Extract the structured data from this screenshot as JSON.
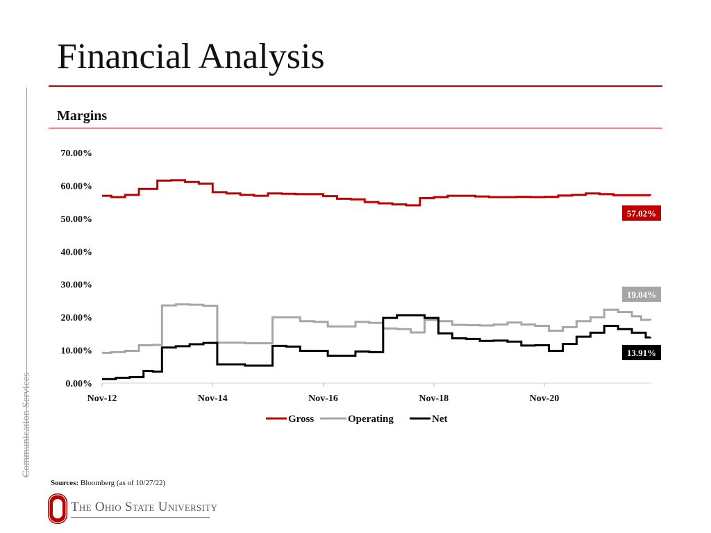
{
  "slide": {
    "title": "Financial Analysis",
    "subtitle": "Margins",
    "sidebar_label": "Communication Services",
    "sources_label": "Sources:",
    "sources_text": "Bloomberg (as of 10/27/22)",
    "logo_text": "The Ohio State University"
  },
  "colors": {
    "accent": "#c00000",
    "gross": "#c00000",
    "operating": "#a6a6a6",
    "net": "#000000"
  },
  "chart_data": {
    "type": "line",
    "title": "Margins",
    "xlabel": "",
    "ylabel": "",
    "x_tick_labels": [
      "Nov-12",
      "Nov-14",
      "Nov-16",
      "Nov-18",
      "Nov-20"
    ],
    "y_tick_labels": [
      "0.00%",
      "10.00%",
      "20.00%",
      "30.00%",
      "40.00%",
      "50.00%",
      "60.00%",
      "70.00%"
    ],
    "ylim": [
      0,
      70
    ],
    "x_range": [
      "Nov-12",
      "Oct-22"
    ],
    "grid": false,
    "legend_position": "bottom",
    "series": [
      {
        "name": "Gross",
        "color": "#c00000",
        "end_label": "57.02%",
        "points": [
          [
            "Nov-12",
            56.9
          ],
          [
            "Jan-13",
            56.5
          ],
          [
            "Apr-13",
            57.2
          ],
          [
            "Jul-13",
            59.0
          ],
          [
            "Nov-13",
            61.5
          ],
          [
            "Feb-14",
            61.6
          ],
          [
            "May-14",
            61.1
          ],
          [
            "Aug-14",
            60.6
          ],
          [
            "Nov-14",
            58.0
          ],
          [
            "Feb-15",
            57.6
          ],
          [
            "May-15",
            57.2
          ],
          [
            "Aug-15",
            56.9
          ],
          [
            "Nov-15",
            57.6
          ],
          [
            "Feb-16",
            57.5
          ],
          [
            "May-16",
            57.4
          ],
          [
            "Aug-16",
            57.4
          ],
          [
            "Nov-16",
            56.8
          ],
          [
            "Feb-17",
            56.0
          ],
          [
            "May-17",
            55.8
          ],
          [
            "Aug-17",
            55.0
          ],
          [
            "Nov-17",
            54.6
          ],
          [
            "Feb-18",
            54.3
          ],
          [
            "May-18",
            54.0
          ],
          [
            "Aug-18",
            56.2
          ],
          [
            "Nov-18",
            56.5
          ],
          [
            "Feb-19",
            56.9
          ],
          [
            "May-19",
            56.9
          ],
          [
            "Aug-19",
            56.7
          ],
          [
            "Nov-19",
            56.5
          ],
          [
            "Feb-20",
            56.5
          ],
          [
            "May-20",
            56.6
          ],
          [
            "Aug-20",
            56.5
          ],
          [
            "Nov-20",
            56.6
          ],
          [
            "Feb-21",
            57.0
          ],
          [
            "May-21",
            57.2
          ],
          [
            "Aug-21",
            57.6
          ],
          [
            "Nov-21",
            57.4
          ],
          [
            "Feb-22",
            57.1
          ],
          [
            "May-22",
            57.1
          ],
          [
            "Oct-22",
            57.02
          ]
        ]
      },
      {
        "name": "Operating",
        "color": "#a6a6a6",
        "end_label": "19.04%",
        "points": [
          [
            "Nov-12",
            9.2
          ],
          [
            "Jan-13",
            9.4
          ],
          [
            "Apr-13",
            9.8
          ],
          [
            "Jul-13",
            11.5
          ],
          [
            "Oct-13",
            11.6
          ],
          [
            "Dec-13",
            23.6
          ],
          [
            "Mar-14",
            23.9
          ],
          [
            "Jun-14",
            23.8
          ],
          [
            "Sep-14",
            23.5
          ],
          [
            "Dec-14",
            12.3
          ],
          [
            "Mar-15",
            12.3
          ],
          [
            "Jun-15",
            12.1
          ],
          [
            "Sep-15",
            12.1
          ],
          [
            "Dec-15",
            20.0
          ],
          [
            "Mar-16",
            20.0
          ],
          [
            "Jun-16",
            18.8
          ],
          [
            "Sep-16",
            18.6
          ],
          [
            "Dec-16",
            17.2
          ],
          [
            "Mar-17",
            17.2
          ],
          [
            "Jun-17",
            18.6
          ],
          [
            "Sep-17",
            18.3
          ],
          [
            "Dec-17",
            16.6
          ],
          [
            "Mar-18",
            16.4
          ],
          [
            "Jun-18",
            15.4
          ],
          [
            "Sep-18",
            19.2
          ],
          [
            "Dec-18",
            18.8
          ],
          [
            "Mar-19",
            17.7
          ],
          [
            "Jun-19",
            17.6
          ],
          [
            "Sep-19",
            17.5
          ],
          [
            "Dec-19",
            17.8
          ],
          [
            "Mar-20",
            18.4
          ],
          [
            "Jun-20",
            17.8
          ],
          [
            "Sep-20",
            17.4
          ],
          [
            "Dec-20",
            15.9
          ],
          [
            "Mar-21",
            17.0
          ],
          [
            "Jun-21",
            18.8
          ],
          [
            "Sep-21",
            20.0
          ],
          [
            "Dec-21",
            22.3
          ],
          [
            "Mar-22",
            21.6
          ],
          [
            "Jun-22",
            20.3
          ],
          [
            "Aug-22",
            19.2
          ],
          [
            "Oct-22",
            19.04
          ]
        ]
      },
      {
        "name": "Net",
        "color": "#000000",
        "end_label": "13.91%",
        "points": [
          [
            "Nov-12",
            1.2
          ],
          [
            "Feb-13",
            1.6
          ],
          [
            "May-13",
            1.8
          ],
          [
            "Aug-13",
            3.7
          ],
          [
            "Oct-13",
            3.5
          ],
          [
            "Dec-13",
            10.8
          ],
          [
            "Mar-14",
            11.2
          ],
          [
            "Jun-14",
            11.8
          ],
          [
            "Sep-14",
            12.2
          ],
          [
            "Dec-14",
            5.7
          ],
          [
            "Mar-15",
            5.7
          ],
          [
            "Jun-15",
            5.3
          ],
          [
            "Sep-15",
            5.3
          ],
          [
            "Dec-15",
            11.3
          ],
          [
            "Mar-16",
            11.1
          ],
          [
            "Jun-16",
            9.8
          ],
          [
            "Sep-16",
            9.8
          ],
          [
            "Dec-16",
            8.3
          ],
          [
            "Mar-17",
            8.3
          ],
          [
            "Jun-17",
            9.6
          ],
          [
            "Sep-17",
            9.4
          ],
          [
            "Dec-17",
            19.8
          ],
          [
            "Mar-18",
            20.6
          ],
          [
            "Jun-18",
            20.6
          ],
          [
            "Sep-18",
            19.8
          ],
          [
            "Dec-18",
            15.1
          ],
          [
            "Mar-19",
            13.6
          ],
          [
            "Jun-19",
            13.4
          ],
          [
            "Sep-19",
            12.8
          ],
          [
            "Dec-19",
            12.9
          ],
          [
            "Mar-20",
            12.6
          ],
          [
            "Jun-20",
            11.4
          ],
          [
            "Sep-20",
            11.5
          ],
          [
            "Dec-20",
            9.8
          ],
          [
            "Mar-21",
            11.9
          ],
          [
            "Jun-21",
            14.1
          ],
          [
            "Sep-21",
            15.3
          ],
          [
            "Dec-21",
            17.4
          ],
          [
            "Mar-22",
            16.4
          ],
          [
            "Jun-22",
            15.3
          ],
          [
            "Sep-22",
            13.9
          ],
          [
            "Oct-22",
            13.91
          ]
        ]
      }
    ]
  }
}
